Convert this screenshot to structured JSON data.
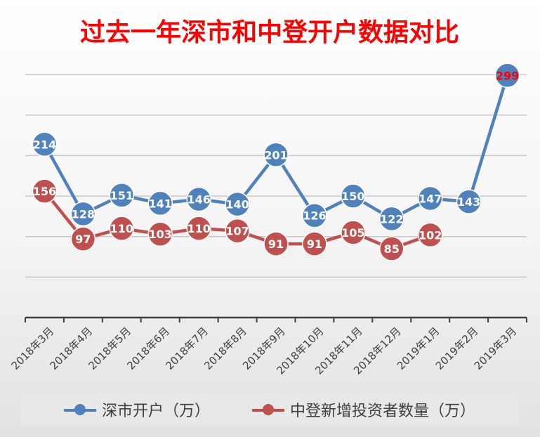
{
  "chart_data": {
    "type": "line",
    "title": "过去一年深市和中登开户数据对比",
    "categories": [
      "2018年3月",
      "2018年4月",
      "2018年5月",
      "2018年6月",
      "2018年7月",
      "2018年8月",
      "2018年9月",
      "2018年10月",
      "2018年11月",
      "2018年12月",
      "2019年1月",
      "2019年2月",
      "2019年3月"
    ],
    "series": [
      {
        "name": "深市开户（万）",
        "values": [
          214,
          128,
          151,
          141,
          146,
          140,
          201,
          126,
          150,
          122,
          147,
          143,
          299
        ],
        "color": "#4f81bd"
      },
      {
        "name": "中登新增投资者数量（万）",
        "values": [
          156,
          97,
          110,
          103,
          110,
          107,
          91,
          91,
          105,
          85,
          102,
          null,
          null
        ],
        "color": "#c0504d"
      }
    ],
    "ylim": [
      0,
      340
    ],
    "grid": true,
    "legend": "bottom",
    "title_color": "#ff0000",
    "highlight": {
      "series": 0,
      "index": 12,
      "label_color": "#ff0000"
    }
  }
}
